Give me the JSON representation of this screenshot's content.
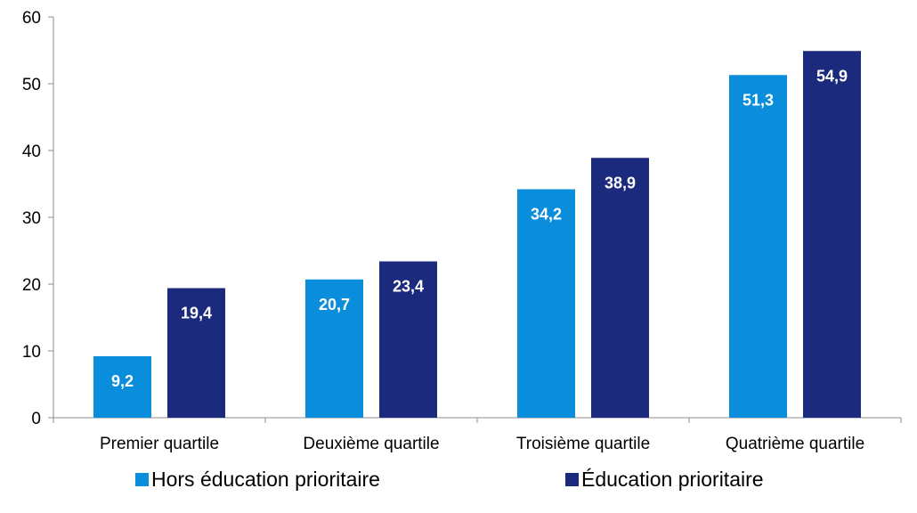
{
  "chart_data": {
    "type": "bar",
    "categories": [
      "Premier quartile",
      "Deuxième quartile",
      "Troisième quartile",
      "Quatrième quartile"
    ],
    "series": [
      {
        "name": "Hors éducation prioritaire",
        "values": [
          9.2,
          20.7,
          34.2,
          51.3
        ],
        "labels": [
          "9,2",
          "20,7",
          "34,2",
          "51,3"
        ],
        "color": "#0a8ddb"
      },
      {
        "name": "Éducation prioritaire",
        "values": [
          19.4,
          23.4,
          38.9,
          54.9
        ],
        "labels": [
          "19,4",
          "23,4",
          "38,9",
          "54,9"
        ],
        "color": "#1b2a7c"
      }
    ],
    "yticks": [
      "0",
      "10",
      "20",
      "30",
      "40",
      "50",
      "60"
    ],
    "ylim": [
      0,
      60
    ],
    "grid": false,
    "legend_position": "bottom"
  }
}
